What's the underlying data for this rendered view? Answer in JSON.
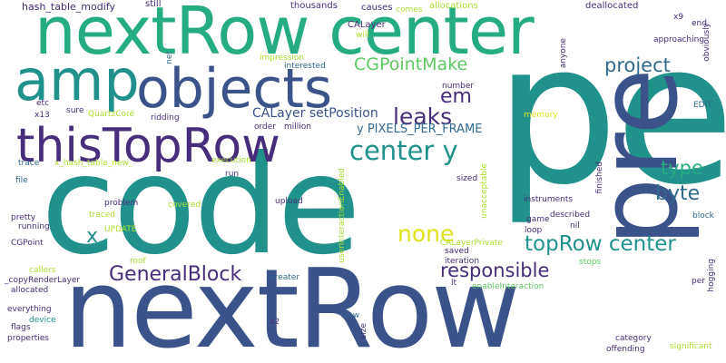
{
  "words": {
    "pe": "pe",
    "code": "code",
    "nextRow": "nextRow",
    "pre": "pre",
    "nextRow_center": "nextRow center",
    "amp": "amp",
    "objects": "objects",
    "thisTopRow": "thisTopRow",
    "GCPointMake": "CGPointMake",
    "project": "project",
    "em": "em",
    "leaks": "leaks",
    "center_y": "center y",
    "type": "type",
    "byte": "byte",
    "none": "none",
    "topRow_center": "topRow center",
    "responsible": "responsible",
    "GeneralBlock": "GeneralBlock",
    "x": "x",
    "CALayer_setPosition": "CALayer setPosition",
    "y_PIXELS_PER_FRAME": "y PIXELS_PER_FRAME",
    "hash_table_modify": "hash_table_modify",
    "still": "still",
    "thousands": "thousands",
    "causes": "causes",
    "comes": "comes",
    "allocations": "allocations",
    "deallocated": "deallocated",
    "CALayer": "CALayer",
    "will": "will",
    "x9": "x9",
    "end": "end",
    "obviously": "obviously",
    "net": "net",
    "impression": "impression",
    "interested": "interested",
    "anyone": "anyone",
    "approaching": "approaching",
    "number": "number",
    "etc": "etc",
    "sure": "sure",
    "QuartzCore": "QuartzCore",
    "x13": "x13",
    "ridding": "ridding",
    "memory": "memory",
    "EDIT": "EDIT",
    "order": "order",
    "million": "million",
    "execution": "execution",
    "trace": "trace",
    "x_hash_table_new": "x_hash_table_new_",
    "file": "file",
    "run": "run",
    "enableInteraction": "userInteractionEnabled",
    "sized": "sized",
    "unacceptable": "unacceptable",
    "finished": "finished",
    "covered": "covered",
    "upload": "upload",
    "problem": "problem",
    "instruments": "instruments",
    "pretty": "pretty",
    "traced": "traced",
    "described": "described",
    "game": "game",
    "block": "block",
    "running": "running",
    "UPDATE": "UPDATE",
    "nil": "nil",
    "loop": "loop",
    "CGPoint": "CGPoint",
    "CALayerPrivate": "CALayerPrivate",
    "roof": "roof",
    "saved": "saved",
    "iteration": "iteration",
    "callers": "callers",
    "stops": "stops",
    "hogging": "hogging",
    "_copyRenderLayer": "_copyRenderLayer",
    "greater": "greater",
    "lt": "lt",
    "enableInteraction2": "enableInteraction",
    "per": "per",
    "allocated": "allocated",
    "everything": "everything",
    "device": "device",
    "slow": "slow",
    "flags": "flags",
    "x2": "x2",
    "size": "size",
    "category": "category",
    "properties": "properties",
    "offending": "offending",
    "significant": "significant"
  },
  "colors": {
    "teal": "#21918c",
    "blue": "#3b528b",
    "purple": "#472d7b",
    "green": "#5ec962",
    "lime": "#addc30",
    "yellow": "#dde318",
    "navy": "#31688e",
    "sea": "#25ac82",
    "dark": "#440154"
  }
}
